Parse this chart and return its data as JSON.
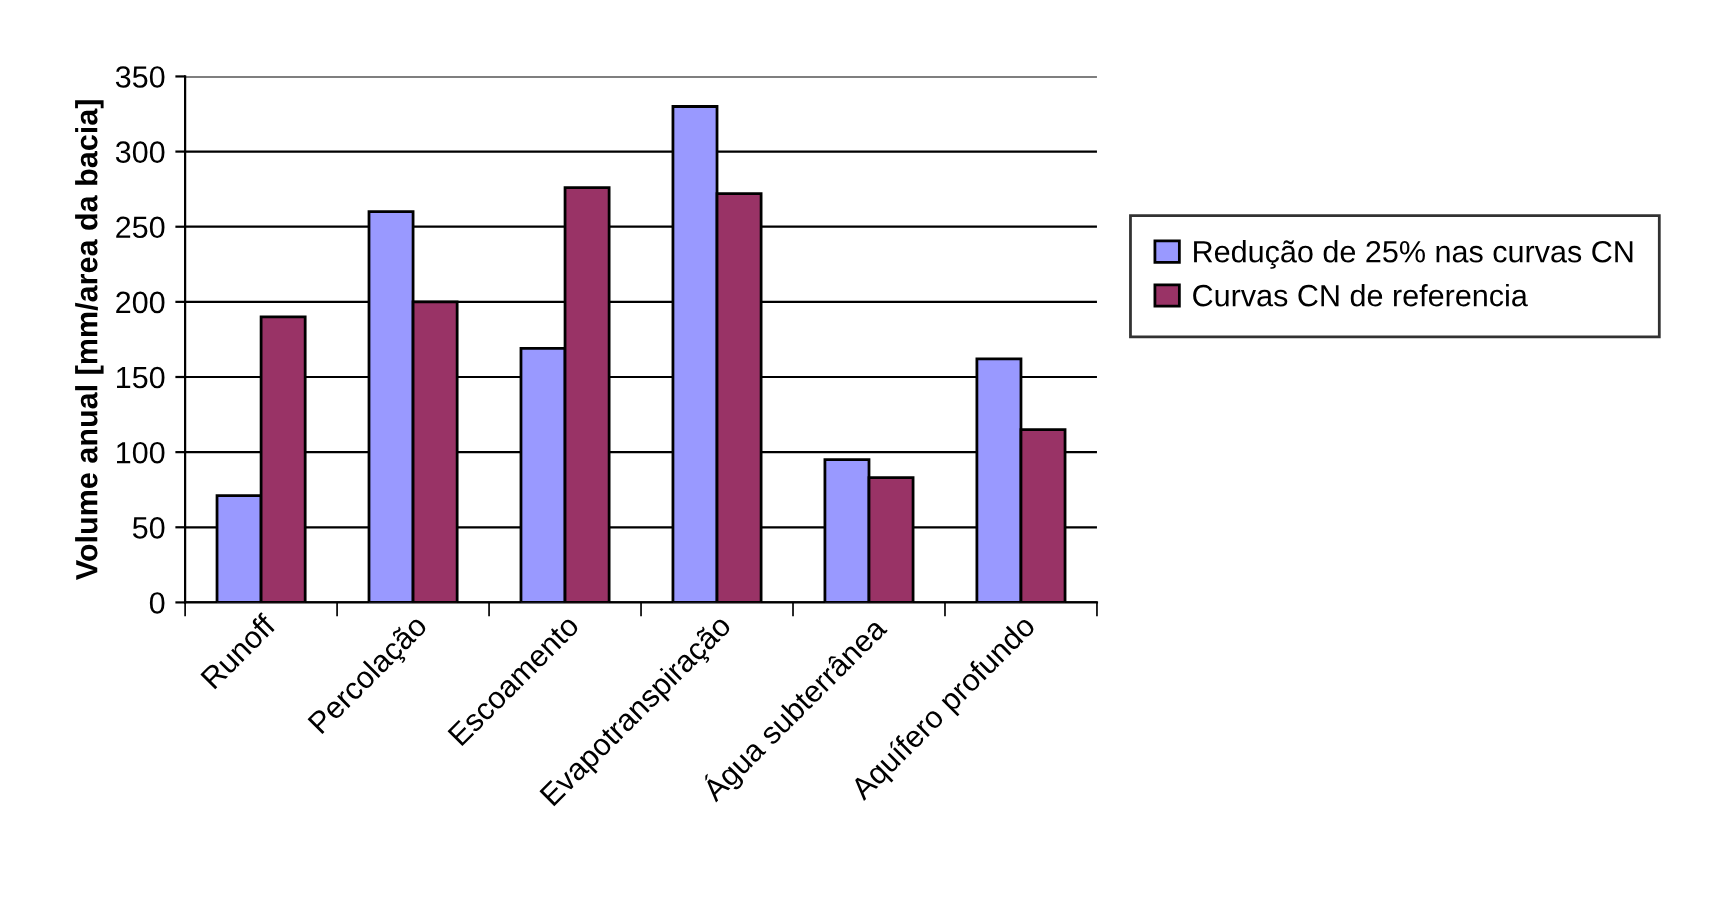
{
  "chart_data": {
    "type": "bar",
    "ylabel": "Volume anual [mm/area da bacia]",
    "categories": [
      "Runoff",
      "Percolação",
      "Escoamento",
      "Evapotranspiração",
      "Água subterrânea",
      "Aquífero profundo"
    ],
    "series": [
      {
        "name": "Redução de 25% nas curvas CN",
        "color": "#9999ff",
        "values": [
          71,
          260,
          169,
          330,
          95,
          162
        ]
      },
      {
        "name": "Curvas CN de referencia",
        "color": "#993366",
        "values": [
          190,
          200,
          276,
          272,
          83,
          115
        ]
      }
    ],
    "ylim": [
      0,
      350
    ],
    "yticks": [
      0,
      50,
      100,
      150,
      200,
      250,
      300,
      350
    ],
    "grid": "y",
    "legend": "right"
  }
}
